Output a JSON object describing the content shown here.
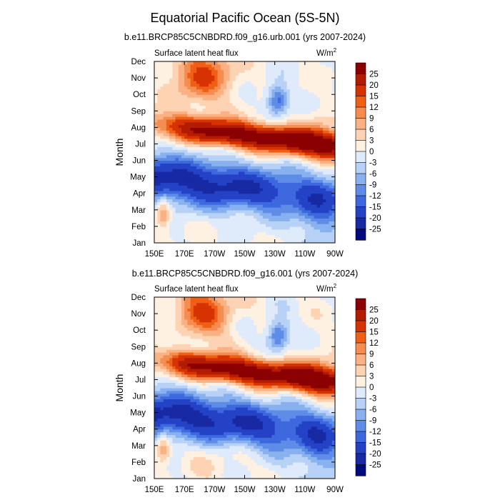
{
  "title": "Equatorial Pacific Ocean (5S-5N)",
  "chart_data": [
    {
      "type": "heatmap",
      "subtitle": "b.e11.BRCP85C5CNBDRD.f09_g16.urb.001 (yrs 2007-2024)",
      "left_label": "Surface latent heat flux",
      "units_base": "W/m",
      "units_exp": "2",
      "ylabel": "Month",
      "xlabel": "",
      "x_ticks": [
        "150E",
        "170E",
        "170W",
        "150W",
        "130W",
        "110W",
        "90W"
      ],
      "y_ticks": [
        "Jan",
        "Feb",
        "Mar",
        "Apr",
        "May",
        "Jun",
        "Jul",
        "Aug",
        "Sep",
        "Oct",
        "Nov",
        "Dec"
      ],
      "xlim_deg_east": [
        150,
        270
      ],
      "ylim_month": [
        1,
        12
      ],
      "variant": 0
    },
    {
      "type": "heatmap",
      "subtitle": "b.e11.BRCP85C5CNBDRD.f09_g16.001 (yrs 2007-2024)",
      "left_label": "Surface latent heat flux",
      "units_base": "W/m",
      "units_exp": "2",
      "ylabel": "Month",
      "xlabel": "",
      "x_ticks": [
        "150E",
        "170E",
        "170W",
        "150W",
        "130W",
        "110W",
        "90W"
      ],
      "y_ticks": [
        "Jan",
        "Feb",
        "Mar",
        "Apr",
        "May",
        "Jun",
        "Jul",
        "Aug",
        "Sep",
        "Oct",
        "Nov",
        "Dec"
      ],
      "xlim_deg_east": [
        150,
        270
      ],
      "ylim_month": [
        1,
        12
      ],
      "variant": 1
    }
  ],
  "colorbar": {
    "labels": [
      "25",
      "20",
      "15",
      "12",
      "9",
      "6",
      "3",
      "0",
      "-3",
      "-6",
      "-9",
      "-12",
      "-15",
      "-20",
      "-25"
    ],
    "levels": [
      -25,
      -20,
      -15,
      -12,
      -9,
      -6,
      -3,
      0,
      3,
      6,
      9,
      12,
      15,
      20,
      25
    ],
    "colors": [
      "#8b0000",
      "#b31c00",
      "#d73302",
      "#ef5f14",
      "#f58c50",
      "#fab183",
      "#fdd3b3",
      "#fff1e2",
      "#dfeafb",
      "#b7d1f7",
      "#88b1ef",
      "#5e8ce6",
      "#3d68de",
      "#2442c6",
      "#1829a4",
      "#000c7d"
    ]
  }
}
